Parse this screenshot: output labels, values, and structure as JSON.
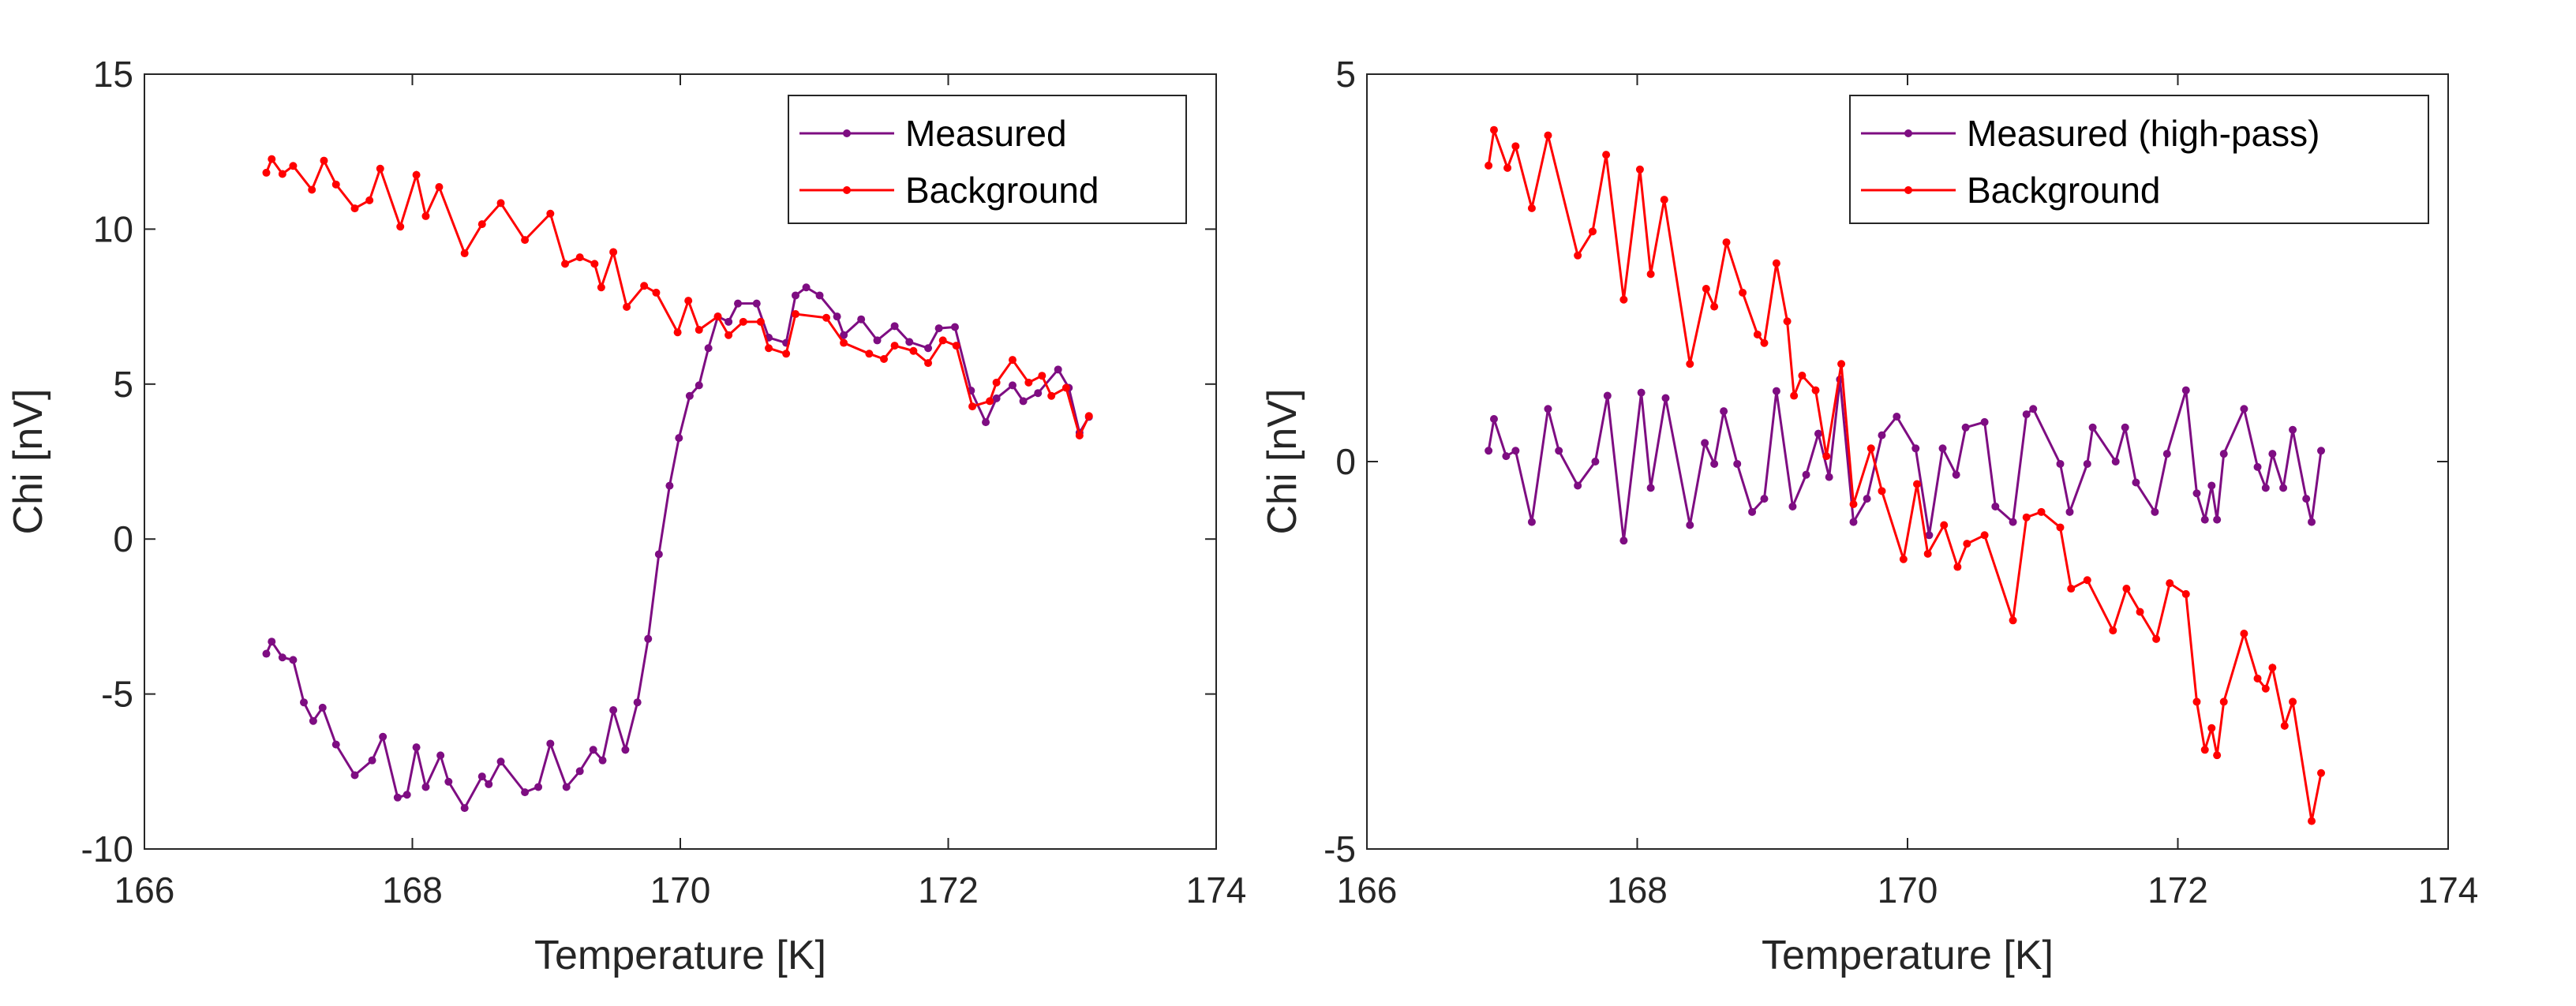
{
  "chart_data": [
    {
      "type": "line",
      "xlabel": "Temperature [K]",
      "ylabel": "Chi [nV]",
      "xlim": [
        166,
        174
      ],
      "ylim": [
        -10,
        15
      ],
      "xticks": [
        166,
        168,
        170,
        172,
        174
      ],
      "yticks": [
        -10,
        -5,
        0,
        5,
        10,
        15
      ],
      "xtick_labels": [
        "166",
        "168",
        "170",
        "172",
        "174"
      ],
      "ytick_labels": [
        "-10",
        "-5",
        "0",
        "5",
        "10",
        "15"
      ],
      "grid": false,
      "legend_position": "top-right",
      "series": [
        {
          "name": "Measured",
          "color": "#7E0D82",
          "x": [
            166.91,
            166.95,
            167.03,
            167.11,
            167.19,
            167.26,
            167.33,
            167.43,
            167.57,
            167.7,
            167.78,
            167.89,
            167.96,
            168.03,
            168.1,
            168.21,
            168.27,
            168.39,
            168.52,
            168.57,
            168.66,
            168.84,
            168.94,
            169.03,
            169.15,
            169.25,
            169.35,
            169.42,
            169.5,
            169.59,
            169.68,
            169.76,
            169.84,
            169.92,
            169.99,
            170.07,
            170.14,
            170.21,
            170.28,
            170.36,
            170.43,
            170.57,
            170.66,
            170.79,
            170.86,
            170.94,
            171.04,
            171.17,
            171.22,
            171.35,
            171.47,
            171.6,
            171.71,
            171.85,
            171.93,
            172.05,
            172.17,
            172.28,
            172.36,
            172.48,
            172.56,
            172.67,
            172.82,
            172.9,
            172.98,
            173.05
          ],
          "y": [
            -3.7,
            -3.31,
            -3.82,
            -3.9,
            -5.27,
            -5.87,
            -5.44,
            -6.63,
            -7.62,
            -7.14,
            -6.38,
            -8.34,
            -8.25,
            -6.72,
            -8.0,
            -6.98,
            -7.83,
            -8.68,
            -7.66,
            -7.91,
            -7.18,
            -8.17,
            -8.0,
            -6.6,
            -8.0,
            -7.49,
            -6.8,
            -7.14,
            -5.52,
            -6.8,
            -5.27,
            -3.22,
            -0.49,
            1.72,
            3.26,
            4.62,
            4.96,
            6.16,
            7.18,
            7.01,
            7.6,
            7.6,
            6.5,
            6.33,
            7.86,
            8.12,
            7.86,
            7.18,
            6.58,
            7.09,
            6.41,
            6.87,
            6.36,
            6.16,
            6.8,
            6.84,
            4.79,
            3.77,
            4.54,
            4.96,
            4.45,
            4.71,
            5.47,
            4.88,
            3.43,
            3.94
          ]
        },
        {
          "name": "Background",
          "color": "#FF0000",
          "x": [
            166.91,
            166.95,
            167.03,
            167.11,
            167.25,
            167.34,
            167.43,
            167.57,
            167.68,
            167.76,
            167.91,
            168.03,
            168.1,
            168.2,
            168.39,
            168.52,
            168.66,
            168.84,
            169.03,
            169.14,
            169.25,
            169.36,
            169.41,
            169.5,
            169.6,
            169.73,
            169.82,
            169.98,
            170.06,
            170.14,
            170.28,
            170.36,
            170.47,
            170.6,
            170.66,
            170.79,
            170.86,
            171.09,
            171.22,
            171.41,
            171.52,
            171.6,
            171.74,
            171.85,
            171.96,
            172.06,
            172.18,
            172.31,
            172.36,
            172.48,
            172.6,
            172.7,
            172.77,
            172.88,
            172.98,
            173.05
          ],
          "y": [
            11.82,
            12.26,
            11.78,
            12.04,
            11.27,
            12.21,
            11.44,
            10.67,
            10.93,
            11.95,
            10.08,
            11.75,
            10.42,
            11.36,
            9.22,
            10.16,
            10.84,
            9.65,
            10.5,
            8.88,
            9.09,
            8.88,
            8.12,
            9.26,
            7.49,
            8.17,
            7.95,
            6.67,
            7.69,
            6.75,
            7.18,
            6.58,
            7.01,
            7.01,
            6.16,
            5.98,
            7.26,
            7.14,
            6.33,
            5.98,
            5.81,
            6.24,
            6.07,
            5.68,
            6.41,
            6.24,
            4.28,
            4.45,
            5.05,
            5.78,
            5.05,
            5.27,
            4.62,
            4.88,
            3.34,
            3.97
          ]
        }
      ]
    },
    {
      "type": "line",
      "xlabel": "Temperature [K]",
      "ylabel": "Chi [nV]",
      "xlim": [
        166,
        174
      ],
      "ylim": [
        -5,
        5
      ],
      "xticks": [
        166,
        168,
        170,
        172,
        174
      ],
      "yticks": [
        -5,
        0,
        5
      ],
      "xtick_labels": [
        "166",
        "168",
        "170",
        "172",
        "174"
      ],
      "ytick_labels": [
        "-5",
        "0",
        "5"
      ],
      "grid": false,
      "legend_position": "top-right",
      "series": [
        {
          "name": "Measured (high-pass)",
          "color": "#7E0D82",
          "x": [
            166.9,
            166.94,
            167.03,
            167.1,
            167.22,
            167.34,
            167.42,
            167.56,
            167.69,
            167.78,
            167.9,
            168.03,
            168.1,
            168.21,
            168.39,
            168.5,
            168.57,
            168.64,
            168.74,
            168.85,
            168.94,
            169.03,
            169.15,
            169.25,
            169.34,
            169.42,
            169.5,
            169.6,
            169.7,
            169.81,
            169.92,
            170.06,
            170.16,
            170.26,
            170.36,
            170.43,
            170.57,
            170.65,
            170.78,
            170.88,
            170.93,
            171.13,
            171.2,
            171.33,
            171.37,
            171.54,
            171.61,
            171.69,
            171.83,
            171.92,
            172.06,
            172.14,
            172.2,
            172.25,
            172.29,
            172.34,
            172.49,
            172.59,
            172.65,
            172.7,
            172.78,
            172.85,
            172.95,
            172.99,
            173.06
          ],
          "y": [
            0.14,
            0.55,
            0.07,
            0.14,
            -0.78,
            0.68,
            0.14,
            -0.31,
            0.0,
            0.85,
            -1.02,
            0.89,
            -0.34,
            0.82,
            -0.82,
            0.24,
            -0.03,
            0.65,
            -0.03,
            -0.65,
            -0.48,
            0.91,
            -0.58,
            -0.17,
            0.36,
            -0.2,
            1.06,
            -0.78,
            -0.48,
            0.34,
            0.58,
            0.17,
            -0.95,
            0.17,
            -0.17,
            0.44,
            0.51,
            -0.58,
            -0.78,
            0.61,
            0.68,
            -0.03,
            -0.65,
            -0.03,
            0.44,
            0.0,
            0.44,
            -0.27,
            -0.65,
            0.1,
            0.92,
            -0.41,
            -0.75,
            -0.31,
            -0.75,
            0.1,
            0.68,
            -0.07,
            -0.34,
            0.1,
            -0.34,
            0.41,
            -0.48,
            -0.78,
            0.14
          ]
        },
        {
          "name": "Background",
          "color": "#FF0000",
          "x": [
            166.9,
            166.94,
            167.04,
            167.1,
            167.22,
            167.34,
            167.56,
            167.67,
            167.77,
            167.9,
            168.02,
            168.1,
            168.2,
            168.39,
            168.51,
            168.57,
            168.66,
            168.78,
            168.89,
            168.94,
            169.03,
            169.11,
            169.16,
            169.22,
            169.32,
            169.4,
            169.51,
            169.6,
            169.73,
            169.81,
            169.97,
            170.07,
            170.15,
            170.27,
            170.37,
            170.44,
            170.57,
            170.78,
            170.88,
            170.99,
            171.13,
            171.21,
            171.33,
            171.52,
            171.62,
            171.72,
            171.84,
            171.94,
            172.06,
            172.14,
            172.2,
            172.25,
            172.29,
            172.34,
            172.49,
            172.59,
            172.65,
            172.7,
            172.79,
            172.85,
            172.99,
            173.06
          ],
          "y": [
            3.82,
            4.28,
            3.79,
            4.07,
            3.27,
            4.21,
            2.66,
            2.97,
            3.96,
            2.09,
            3.77,
            2.42,
            3.38,
            1.26,
            2.23,
            2.0,
            2.83,
            2.18,
            1.64,
            1.53,
            2.56,
            1.81,
            0.85,
            1.11,
            0.92,
            0.07,
            1.26,
            -0.55,
            0.17,
            -0.38,
            -1.26,
            -0.29,
            -1.19,
            -0.82,
            -1.36,
            -1.06,
            -0.95,
            -2.05,
            -0.72,
            -0.65,
            -0.85,
            -1.64,
            -1.53,
            -2.18,
            -1.64,
            -1.94,
            -2.29,
            -1.57,
            -1.71,
            -3.1,
            -3.72,
            -3.44,
            -3.79,
            -3.1,
            -2.22,
            -2.8,
            -2.93,
            -2.66,
            -3.41,
            -3.1,
            -4.64,
            -4.02
          ]
        }
      ]
    }
  ]
}
